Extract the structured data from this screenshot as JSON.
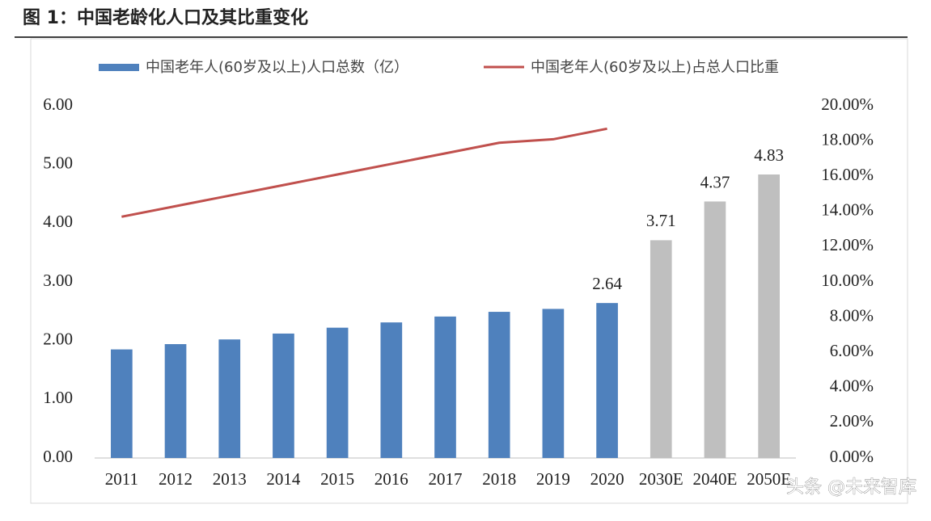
{
  "chart_data": {
    "type": "bar",
    "title": "图 1：中国老龄化人口及其比重变化",
    "categories": [
      "2011",
      "2012",
      "2013",
      "2014",
      "2015",
      "2016",
      "2017",
      "2018",
      "2019",
      "2020",
      "2030E",
      "2040E",
      "2050E"
    ],
    "series": [
      {
        "name": "中国老年人(60岁及以上)人口总数（亿）",
        "type": "bar",
        "color": "#4f81bd",
        "colors": [
          "#4f81bd",
          "#4f81bd",
          "#4f81bd",
          "#4f81bd",
          "#4f81bd",
          "#4f81bd",
          "#4f81bd",
          "#4f81bd",
          "#4f81bd",
          "#4f81bd",
          "#bfbfbf",
          "#bfbfbf",
          "#bfbfbf"
        ],
        "values": [
          1.85,
          1.94,
          2.02,
          2.12,
          2.22,
          2.31,
          2.41,
          2.49,
          2.54,
          2.64,
          3.71,
          4.37,
          4.83
        ],
        "value_labels": [
          null,
          null,
          null,
          null,
          null,
          null,
          null,
          null,
          null,
          "2.64",
          "3.71",
          "4.37",
          "4.83"
        ]
      },
      {
        "name": "中国老年人(60岁及以上)占总人口比重",
        "type": "line",
        "axis": "y2",
        "color": "#c0504d",
        "values": [
          13.7,
          14.3,
          14.9,
          15.5,
          16.1,
          16.7,
          17.3,
          17.9,
          18.1,
          18.7,
          null,
          null,
          null
        ]
      }
    ],
    "ylim": [
      0,
      6
    ],
    "yticks": [
      {
        "value": 0,
        "label": "0.00"
      },
      {
        "value": 1,
        "label": "1.00"
      },
      {
        "value": 2,
        "label": "2.00"
      },
      {
        "value": 3,
        "label": "3.00"
      },
      {
        "value": 4,
        "label": "4.00"
      },
      {
        "value": 5,
        "label": "5.00"
      },
      {
        "value": 6,
        "label": "6.00"
      }
    ],
    "y2lim": [
      0,
      20
    ],
    "y2ticks": [
      {
        "value": 0,
        "label": "0.00%"
      },
      {
        "value": 2,
        "label": "2.00%"
      },
      {
        "value": 4,
        "label": "4.00%"
      },
      {
        "value": 6,
        "label": "6.00%"
      },
      {
        "value": 8,
        "label": "8.00%"
      },
      {
        "value": 10,
        "label": "10.00%"
      },
      {
        "value": 12,
        "label": "12.00%"
      },
      {
        "value": 14,
        "label": "14.00%"
      },
      {
        "value": 16,
        "label": "16.00%"
      },
      {
        "value": 18,
        "label": "18.00%"
      },
      {
        "value": 20,
        "label": "20.00%"
      }
    ],
    "legend": "top",
    "watermark": "头条 @未来智库"
  }
}
